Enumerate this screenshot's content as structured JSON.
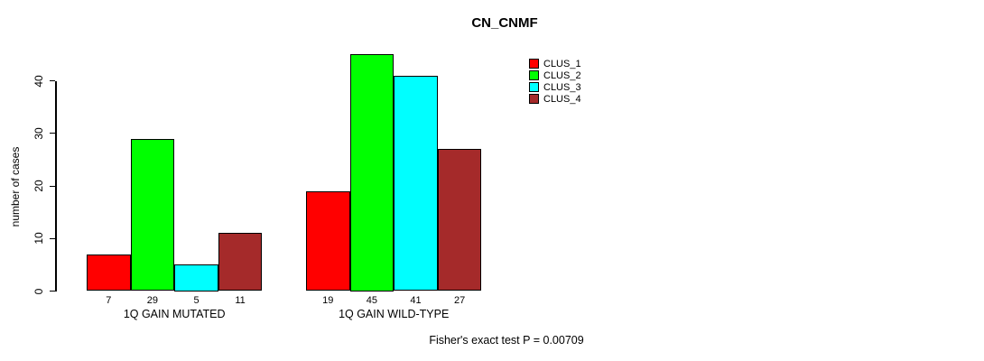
{
  "chart_data": {
    "type": "bar",
    "title": "CN_CNMF",
    "ylabel": "number of cases",
    "xlabel": "",
    "categories": [
      "1Q GAIN MUTATED",
      "1Q GAIN WILD-TYPE"
    ],
    "series": [
      {
        "name": "CLUS_1",
        "color": "#FF0000",
        "values": [
          7,
          19
        ]
      },
      {
        "name": "CLUS_2",
        "color": "#00FF00",
        "values": [
          29,
          45
        ]
      },
      {
        "name": "CLUS_3",
        "color": "#00FFFF",
        "values": [
          5,
          41
        ]
      },
      {
        "name": "CLUS_4",
        "color": "#A52A2A",
        "values": [
          11,
          27
        ]
      }
    ],
    "yticks": [
      0,
      10,
      20,
      30,
      40
    ],
    "ylim": [
      0,
      45
    ],
    "grid": false,
    "bar_value_labels_shown": true,
    "legend_position": "top-right",
    "annotation": "Fisher's exact test P = 0.00709"
  }
}
